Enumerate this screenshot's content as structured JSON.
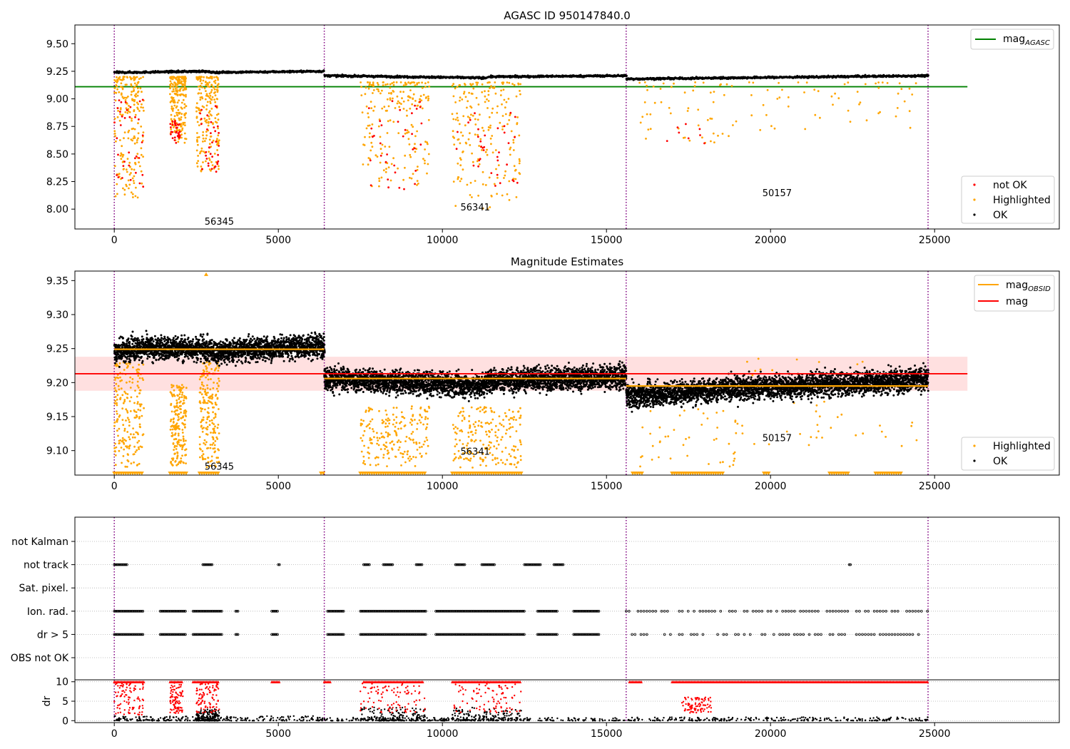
{
  "chart_data": [
    {
      "type": "scatter",
      "title": "AGASC ID 950147840.0",
      "xlim": [
        -1200,
        28800
      ],
      "ylim": [
        7.82,
        9.67
      ],
      "x_ticks": [
        0,
        5000,
        10000,
        15000,
        20000,
        25000
      ],
      "y_ticks": [
        8.0,
        8.25,
        8.5,
        8.75,
        9.0,
        9.25,
        9.5
      ],
      "y_tick_labels": [
        "8.00",
        "8.25",
        "8.50",
        "8.75",
        "9.00",
        "9.25",
        "9.50"
      ],
      "grid": false,
      "observation_boundaries": [
        0,
        6400,
        15600,
        24800
      ],
      "obsid_labels": [
        {
          "text": "56345",
          "x": 3200,
          "y": 7.89
        },
        {
          "text": "56341",
          "x": 11000,
          "y": 8.02
        },
        {
          "text": "50157",
          "x": 20200,
          "y": 8.15
        }
      ],
      "reference_line": {
        "name": "mag_AGASC",
        "y": 9.11,
        "x_range": [
          -1200,
          26000
        ],
        "color": "#008000"
      },
      "ok_series": {
        "name": "OK",
        "color": "#000000",
        "segments": [
          {
            "x": [
              0,
              500,
              2700,
              3000,
              6400
            ],
            "y": [
              9.24,
              9.24,
              9.25,
              9.24,
              9.25
            ]
          },
          {
            "x": [
              6400,
              11300,
              11400,
              15600
            ],
            "y": [
              9.21,
              9.19,
              9.2,
              9.21
            ]
          },
          {
            "x": [
              15600,
              24800
            ],
            "y": [
              9.18,
              9.21
            ]
          }
        ]
      },
      "highlighted_clusters": {
        "name": "Highlighted",
        "color": "#ffa500",
        "clusters": [
          {
            "x": [
              0,
              900
            ],
            "y": [
              8.1,
              9.2
            ]
          },
          {
            "x": [
              1700,
              2200
            ],
            "y": [
              8.6,
              9.2
            ]
          },
          {
            "x": [
              2500,
              3200
            ],
            "y": [
              8.3,
              9.2
            ]
          },
          {
            "x": [
              7500,
              9600
            ],
            "y": [
              8.2,
              9.15
            ]
          },
          {
            "x": [
              10300,
              12400
            ],
            "y": [
              8.0,
              9.15
            ]
          },
          {
            "x": [
              16000,
              19000
            ],
            "y": [
              8.6,
              9.15
            ]
          },
          {
            "x": [
              19000,
              24500
            ],
            "y": [
              8.7,
              9.15
            ]
          }
        ]
      },
      "not_ok_clusters": {
        "name": "not OK",
        "color": "#ff0000",
        "clusters": [
          {
            "x": [
              0,
              900
            ],
            "y": [
              8.2,
              9.0
            ]
          },
          {
            "x": [
              1700,
              2000
            ],
            "y": [
              8.6,
              8.8
            ]
          },
          {
            "x": [
              2600,
              3200
            ],
            "y": [
              8.3,
              9.0
            ]
          },
          {
            "x": [
              7700,
              9400
            ],
            "y": [
              8.1,
              9.0
            ]
          },
          {
            "x": [
              10400,
              12300
            ],
            "y": [
              8.2,
              8.9
            ]
          },
          {
            "x": [
              16800,
              19000
            ],
            "y": [
              8.55,
              8.8
            ]
          }
        ]
      },
      "legends": [
        {
          "position": "upper right",
          "entries": [
            {
              "label": "mag",
              "subscript": "AGASC",
              "kind": "line",
              "color": "#008000"
            }
          ]
        },
        {
          "position": "lower right",
          "entries": [
            {
              "label": "not OK",
              "kind": "marker",
              "color": "#ff0000"
            },
            {
              "label": "Highlighted",
              "kind": "marker",
              "color": "#ffa500"
            },
            {
              "label": "OK",
              "kind": "marker",
              "color": "#000000"
            }
          ]
        }
      ]
    },
    {
      "type": "scatter",
      "title": "Magnitude Estimates",
      "xlim": [
        -1200,
        28800
      ],
      "ylim": [
        9.064,
        9.364
      ],
      "x_ticks": [
        0,
        5000,
        10000,
        15000,
        20000,
        25000
      ],
      "y_ticks": [
        9.1,
        9.15,
        9.2,
        9.25,
        9.3,
        9.35
      ],
      "y_tick_labels": [
        "9.10",
        "9.15",
        "9.20",
        "9.25",
        "9.30",
        "9.35"
      ],
      "grid": false,
      "observation_boundaries": [
        0,
        6400,
        15600,
        24800
      ],
      "obsid_labels": [
        {
          "text": "56345",
          "x": 3200,
          "y": 9.077
        },
        {
          "text": "56341",
          "x": 11000,
          "y": 9.099
        },
        {
          "text": "50157",
          "x": 20200,
          "y": 9.119
        }
      ],
      "mag_line": {
        "name": "mag",
        "y": 9.213,
        "band": [
          9.188,
          9.238
        ],
        "x_range": [
          -1200,
          26000
        ],
        "color": "#ff0000"
      },
      "mag_obsid": {
        "name": "mag_OBSID",
        "color": "#ffa500",
        "segments": [
          {
            "x": [
              0,
              6400
            ],
            "y": 9.249
          },
          {
            "x": [
              6400,
              15600
            ],
            "y": 9.206
          },
          {
            "x": [
              15600,
              24800
            ],
            "y": 9.195
          }
        ]
      },
      "ok_series": {
        "name": "OK",
        "color": "#000000",
        "spread": 0.012,
        "segments": [
          {
            "x": [
              0,
              500,
              2700,
              3000,
              6400
            ],
            "y": [
              9.245,
              9.25,
              9.25,
              9.245,
              9.255
            ]
          },
          {
            "x": [
              6400,
              11200,
              11400,
              15600
            ],
            "y": [
              9.206,
              9.195,
              9.203,
              9.208
            ]
          },
          {
            "x": [
              15600,
              18500,
              24800
            ],
            "y": [
              9.18,
              9.19,
              9.205
            ]
          }
        ]
      },
      "highlighted_clusters": {
        "name": "Highlighted",
        "color": "#ffa500",
        "clusters": [
          {
            "x": [
              0,
              900
            ],
            "y": [
              9.075,
              9.23
            ]
          },
          {
            "x": [
              1700,
              2200
            ],
            "y": [
              9.075,
              9.2
            ]
          },
          {
            "x": [
              2600,
              3200
            ],
            "y": [
              9.075,
              9.23
            ]
          },
          {
            "x": [
              7500,
              9600
            ],
            "y": [
              9.075,
              9.165
            ]
          },
          {
            "x": [
              10300,
              12400
            ],
            "y": [
              9.075,
              9.165
            ]
          },
          {
            "x": [
              16000,
              19000
            ],
            "y": [
              9.075,
              9.165
            ]
          },
          {
            "x": [
              19000,
              24500
            ],
            "y": [
              9.09,
              9.24
            ]
          }
        ]
      },
      "clipped_markers": {
        "marker": "triangle-down",
        "y": 9.066,
        "ranges": [
          [
            0,
            900
          ],
          [
            1700,
            2200
          ],
          [
            2600,
            3200
          ],
          [
            6300,
            6400
          ],
          [
            7500,
            9500
          ],
          [
            10300,
            12400
          ],
          [
            15800,
            16100
          ],
          [
            17000,
            18600
          ],
          [
            19800,
            20000
          ],
          [
            21800,
            22400
          ],
          [
            23200,
            24000
          ]
        ]
      },
      "legends": [
        {
          "position": "upper right",
          "entries": [
            {
              "label": "mag",
              "subscript": "OBSID",
              "kind": "line",
              "color": "#ffa500"
            },
            {
              "label": "mag",
              "kind": "line",
              "color": "#ff0000"
            }
          ]
        },
        {
          "position": "lower right",
          "entries": [
            {
              "label": "Highlighted",
              "kind": "marker",
              "color": "#ffa500"
            },
            {
              "label": "OK",
              "kind": "marker",
              "color": "#000000"
            }
          ]
        }
      ]
    },
    {
      "type": "scatter",
      "title": "",
      "xlim": [
        -1200,
        28800
      ],
      "categories": [
        "not Kalman",
        "not track",
        "Sat. pixel.",
        "Ion. rad.",
        "dr > 5",
        "OBS not OK"
      ],
      "grid": true,
      "observation_boundaries": [
        0,
        6400,
        15600,
        24800
      ],
      "flag_clusters": [
        {
          "category": "not track",
          "ranges": [
            [
              0,
              400
            ],
            [
              2700,
              3000
            ],
            [
              5000,
              5050
            ],
            [
              7600,
              7800
            ],
            [
              8200,
              8500
            ],
            [
              9200,
              9400
            ],
            [
              10400,
              10700
            ],
            [
              11200,
              11600
            ],
            [
              12500,
              13000
            ],
            [
              13400,
              13700
            ],
            [
              22400,
              22450
            ]
          ]
        },
        {
          "category": "Ion. rad.",
          "ranges": [
            [
              0,
              900
            ],
            [
              1400,
              2200
            ],
            [
              2400,
              3300
            ],
            [
              3700,
              3800
            ],
            [
              4800,
              5000
            ],
            [
              6500,
              7000
            ],
            [
              7500,
              9500
            ],
            [
              9800,
              12500
            ],
            [
              12900,
              13500
            ],
            [
              14000,
              14800
            ],
            [
              15600,
              24800
            ]
          ]
        },
        {
          "category": "dr > 5",
          "ranges": [
            [
              0,
              900
            ],
            [
              1400,
              2200
            ],
            [
              2400,
              3300
            ],
            [
              3700,
              3800
            ],
            [
              4800,
              5000
            ],
            [
              6500,
              7000
            ],
            [
              7500,
              9500
            ],
            [
              9800,
              12500
            ],
            [
              12900,
              13500
            ],
            [
              14000,
              14800
            ],
            [
              15600,
              24800
            ]
          ]
        }
      ]
    },
    {
      "type": "scatter",
      "title": "",
      "xlim": [
        -1200,
        28800
      ],
      "ylim": [
        -0.5,
        10.5
      ],
      "ylabel": "dr",
      "y_ticks": [
        0,
        5,
        10
      ],
      "x_ticks": [
        0,
        5000,
        10000,
        15000,
        20000,
        25000
      ],
      "grid": true,
      "observation_boundaries": [
        0,
        6400,
        15600,
        24800
      ],
      "ok_dr": {
        "color": "#000000",
        "clusters": [
          {
            "x": [
              0,
              6400
            ],
            "y": [
              0,
              1.2
            ]
          },
          {
            "x": [
              2500,
              3200
            ],
            "y": [
              0,
              3.0
            ]
          },
          {
            "x": [
              7500,
              9500
            ],
            "y": [
              0,
              3.5
            ]
          },
          {
            "x": [
              10300,
              12400
            ],
            "y": [
              0,
              3.5
            ]
          },
          {
            "x": [
              6400,
              15600
            ],
            "y": [
              0,
              0.8
            ]
          },
          {
            "x": [
              15600,
              24800
            ],
            "y": [
              0,
              0.9
            ]
          }
        ]
      },
      "large_dr": {
        "color": "#ff0000",
        "clusters": [
          {
            "x": [
              0,
              900
            ],
            "y": [
              1.5,
              9.8
            ]
          },
          {
            "x": [
              1700,
              2100
            ],
            "y": [
              1.5,
              9.8
            ]
          },
          {
            "x": [
              2500,
              3200
            ],
            "y": [
              2.0,
              9.8
            ]
          },
          {
            "x": [
              7500,
              9500
            ],
            "y": [
              2.0,
              9.8
            ]
          },
          {
            "x": [
              10300,
              12400
            ],
            "y": [
              2.0,
              9.8
            ]
          },
          {
            "x": [
              17300,
              18200
            ],
            "y": [
              2.0,
              6.0
            ]
          }
        ]
      },
      "clipped_at_10": {
        "marker": "triangle-up",
        "color": "#ff0000",
        "ranges": [
          [
            0,
            900
          ],
          [
            1700,
            2100
          ],
          [
            2400,
            3200
          ],
          [
            4800,
            5050
          ],
          [
            6400,
            6600
          ],
          [
            7600,
            9400
          ],
          [
            10300,
            12400
          ],
          [
            15700,
            16100
          ],
          [
            17000,
            24800
          ]
        ]
      }
    }
  ]
}
